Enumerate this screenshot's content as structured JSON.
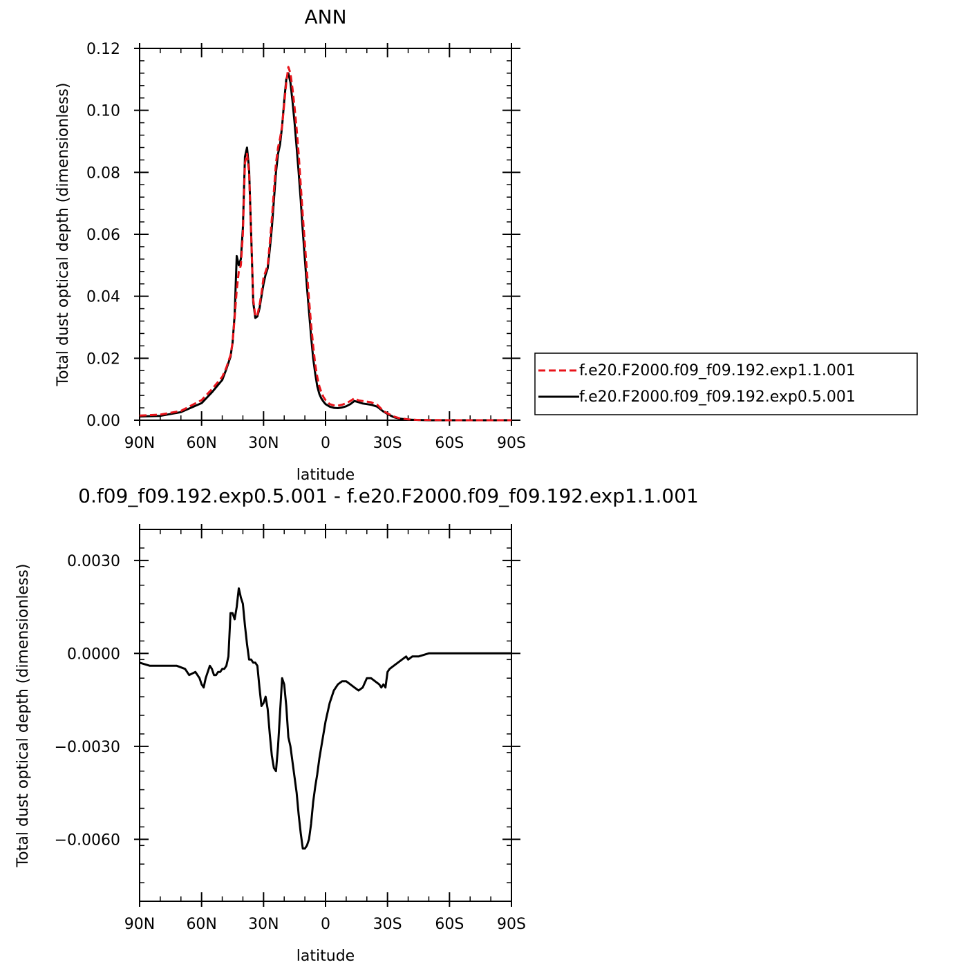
{
  "chart_data": [
    {
      "type": "line",
      "title": "ANN",
      "xlabel": "latitude",
      "ylabel": "Total dust optical depth (dimensionless)",
      "xlim": [
        90,
        -90
      ],
      "ylim": [
        0,
        0.12
      ],
      "x_ticks": [
        90,
        60,
        30,
        0,
        -30,
        -60,
        -90
      ],
      "x_tick_labels": [
        "90N",
        "60N",
        "30N",
        "0",
        "30S",
        "60S",
        "90S"
      ],
      "y_ticks": [
        0,
        0.02,
        0.04,
        0.06,
        0.08,
        0.1,
        0.12
      ],
      "y_tick_labels": [
        "0.00",
        "0.02",
        "0.04",
        "0.06",
        "0.08",
        "0.10",
        "0.12"
      ],
      "legend_position": "right",
      "series": [
        {
          "name": "f.e20.F2000.f09_f09.192.exp1.1.001",
          "color": "#e8141b",
          "dash": "dashed",
          "x": [
            90,
            80,
            70,
            60,
            55,
            50,
            48,
            46,
            45,
            44,
            43,
            42,
            41,
            40,
            39,
            38,
            37,
            36,
            35,
            34,
            33,
            32,
            31,
            30,
            29,
            28,
            27,
            26,
            25,
            24,
            23,
            22,
            21,
            20,
            19,
            18,
            17,
            16,
            15,
            14,
            13,
            12,
            11,
            10,
            9,
            8,
            7,
            6,
            5,
            4,
            3,
            2,
            1,
            0,
            -2,
            -4,
            -6,
            -8,
            -10,
            -12,
            -14,
            -16,
            -18,
            -20,
            -22,
            -25,
            -28,
            -30,
            -33,
            -36,
            -40,
            -45,
            -50,
            -60,
            -70,
            -80,
            -90
          ],
          "y": [
            0.0015,
            0.0018,
            0.003,
            0.0065,
            0.01,
            0.014,
            0.017,
            0.021,
            0.025,
            0.033,
            0.042,
            0.048,
            0.05,
            0.06,
            0.083,
            0.086,
            0.08,
            0.06,
            0.039,
            0.0335,
            0.034,
            0.037,
            0.041,
            0.046,
            0.048,
            0.05,
            0.057,
            0.065,
            0.074,
            0.083,
            0.088,
            0.091,
            0.095,
            0.102,
            0.109,
            0.114,
            0.112,
            0.107,
            0.101,
            0.094,
            0.086,
            0.076,
            0.066,
            0.057,
            0.048,
            0.039,
            0.031,
            0.024,
            0.018,
            0.014,
            0.011,
            0.009,
            0.0075,
            0.0065,
            0.0052,
            0.0048,
            0.0047,
            0.005,
            0.0055,
            0.0062,
            0.0071,
            0.0064,
            0.0062,
            0.006,
            0.0058,
            0.005,
            0.003,
            0.0022,
            0.0012,
            0.0006,
            0.0003,
            0.0001,
            0.0001,
            0.0,
            0.0,
            0.0,
            0.0
          ]
        },
        {
          "name": "f.e20.F2000.f09_f09.192.exp0.5.001",
          "color": "#000000",
          "dash": "solid",
          "x": [
            90,
            80,
            70,
            60,
            55,
            50,
            48,
            46,
            45,
            44,
            43,
            42,
            41,
            40,
            39,
            38,
            37,
            36,
            35,
            34,
            33,
            32,
            31,
            30,
            29,
            28,
            27,
            26,
            25,
            24,
            23,
            22,
            21,
            20,
            19,
            18,
            17,
            16,
            15,
            14,
            13,
            12,
            11,
            10,
            9,
            8,
            7,
            6,
            5,
            4,
            3,
            2,
            1,
            0,
            -2,
            -4,
            -6,
            -8,
            -10,
            -12,
            -14,
            -16,
            -18,
            -20,
            -22,
            -25,
            -28,
            -30,
            -33,
            -36,
            -40,
            -45,
            -50,
            -60,
            -70,
            -80,
            -90
          ],
          "y": [
            0.0012,
            0.0014,
            0.0026,
            0.0055,
            0.009,
            0.013,
            0.0165,
            0.0205,
            0.025,
            0.034,
            0.053,
            0.05,
            0.052,
            0.062,
            0.085,
            0.088,
            0.081,
            0.06,
            0.038,
            0.033,
            0.0335,
            0.036,
            0.04,
            0.044,
            0.047,
            0.049,
            0.055,
            0.062,
            0.071,
            0.08,
            0.086,
            0.089,
            0.095,
            0.103,
            0.11,
            0.112,
            0.109,
            0.103,
            0.096,
            0.088,
            0.08,
            0.071,
            0.061,
            0.052,
            0.043,
            0.035,
            0.027,
            0.02,
            0.015,
            0.011,
            0.0085,
            0.007,
            0.006,
            0.0052,
            0.0044,
            0.004,
            0.0039,
            0.0041,
            0.0045,
            0.0052,
            0.0062,
            0.0058,
            0.0054,
            0.0052,
            0.005,
            0.0044,
            0.0028,
            0.002,
            0.001,
            0.0005,
            0.0002,
            0.0001,
            0.0,
            0.0,
            0.0,
            0.0,
            0.0
          ]
        }
      ]
    },
    {
      "type": "line",
      "title": "0.f09_f09.192.exp0.5.001 - f.e20.F2000.f09_f09.192.exp1.1.001",
      "xlabel": "latitude",
      "ylabel": "Total dust optical depth (dimensionless)",
      "xlim": [
        90,
        -90
      ],
      "ylim": [
        -0.008,
        0.004
      ],
      "x_ticks": [
        90,
        60,
        30,
        0,
        -30,
        -60,
        -90
      ],
      "x_tick_labels": [
        "90N",
        "60N",
        "30N",
        "0",
        "30S",
        "60S",
        "90S"
      ],
      "y_ticks": [
        0.003,
        0.0,
        -0.003,
        -0.006
      ],
      "y_tick_labels": [
        "0.0030",
        "0.0000",
        "−0.0030",
        "−0.0060"
      ],
      "series": [
        {
          "color": "#000000",
          "dash": "solid",
          "x": [
            90,
            85,
            80,
            75,
            72,
            68,
            66,
            63,
            61,
            60,
            59,
            58,
            57,
            56,
            55,
            54,
            53,
            52,
            51,
            50,
            49,
            48,
            47,
            46,
            45,
            44,
            43,
            42,
            41,
            40,
            39,
            38,
            37,
            36,
            35,
            34,
            33,
            32,
            31,
            30,
            29,
            28,
            27,
            26,
            25,
            24,
            23,
            22,
            21,
            20,
            19,
            18,
            17,
            16,
            15,
            14,
            13,
            12,
            11,
            10,
            9,
            8,
            7,
            6,
            5,
            4,
            3,
            2,
            1,
            0,
            -2,
            -4,
            -6,
            -8,
            -10,
            -12,
            -14,
            -16,
            -18,
            -20,
            -22,
            -24,
            -26,
            -27,
            -28,
            -29,
            -30,
            -31,
            -33,
            -35,
            -37,
            -39,
            -40,
            -42,
            -45,
            -50,
            -60,
            -70,
            -80,
            -90
          ],
          "y": [
            -0.0003,
            -0.0004,
            -0.0004,
            -0.0004,
            -0.0004,
            -0.0005,
            -0.0007,
            -0.0006,
            -0.0008,
            -0.001,
            -0.0011,
            -0.0008,
            -0.0006,
            -0.0004,
            -0.0005,
            -0.0007,
            -0.0007,
            -0.0006,
            -0.0006,
            -0.0005,
            -0.0005,
            -0.0004,
            -0.0001,
            0.0013,
            0.0013,
            0.0011,
            0.0015,
            0.0021,
            0.0018,
            0.0016,
            0.0009,
            0.0003,
            -0.0002,
            -0.0002,
            -0.0003,
            -0.0003,
            -0.0004,
            -0.0011,
            -0.0017,
            -0.0016,
            -0.0014,
            -0.0018,
            -0.0026,
            -0.0033,
            -0.0037,
            -0.0038,
            -0.003,
            -0.0019,
            -0.0008,
            -0.001,
            -0.0017,
            -0.0027,
            -0.003,
            -0.0035,
            -0.004,
            -0.0045,
            -0.0052,
            -0.0058,
            -0.0063,
            -0.0063,
            -0.0062,
            -0.006,
            -0.0055,
            -0.0048,
            -0.0043,
            -0.0039,
            -0.0034,
            -0.003,
            -0.0026,
            -0.0022,
            -0.0016,
            -0.0012,
            -0.001,
            -0.0009,
            -0.0009,
            -0.001,
            -0.0011,
            -0.0012,
            -0.0011,
            -0.0008,
            -0.0008,
            -0.0009,
            -0.001,
            -0.0011,
            -0.001,
            -0.0011,
            -0.0006,
            -0.0005,
            -0.0004,
            -0.0003,
            -0.0002,
            -0.0001,
            -0.0002,
            -0.0001,
            -0.0001,
            0.0,
            0.0,
            0.0,
            0.0,
            0.0
          ]
        }
      ]
    }
  ]
}
